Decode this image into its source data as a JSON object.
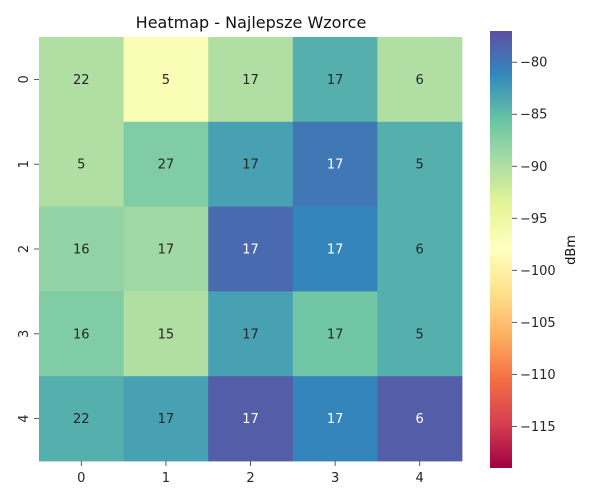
{
  "chart_data": {
    "type": "heatmap",
    "title": "Heatmap - Najlepsze Wzorce",
    "x_labels": [
      "0",
      "1",
      "2",
      "3",
      "4"
    ],
    "y_labels": [
      "0",
      "1",
      "2",
      "3",
      "4"
    ],
    "annotations": [
      [
        22,
        5,
        17,
        17,
        6
      ],
      [
        5,
        27,
        17,
        17,
        5
      ],
      [
        16,
        17,
        17,
        17,
        6
      ],
      [
        16,
        15,
        17,
        17,
        5
      ],
      [
        22,
        17,
        17,
        17,
        6
      ]
    ],
    "color_values_dbm": [
      [
        -90,
        -97,
        -90,
        -84,
        -90
      ],
      [
        -90,
        -87,
        -83,
        -80,
        -84
      ],
      [
        -88,
        -89,
        -79,
        -81,
        -84
      ],
      [
        -87,
        -90,
        -83,
        -86,
        -84
      ],
      [
        -84,
        -83,
        -78,
        -81,
        -78
      ]
    ],
    "colorbar": {
      "label": "dBm",
      "vmin": -119,
      "vmax": -77,
      "ticks": [
        -80,
        -85,
        -90,
        -95,
        -100,
        -105,
        -110,
        -115
      ],
      "tick_labels": [
        "−80",
        "−85",
        "−90",
        "−95",
        "−100",
        "−105",
        "−110",
        "−115"
      ]
    },
    "colormap": "Spectral",
    "grid": false
  }
}
